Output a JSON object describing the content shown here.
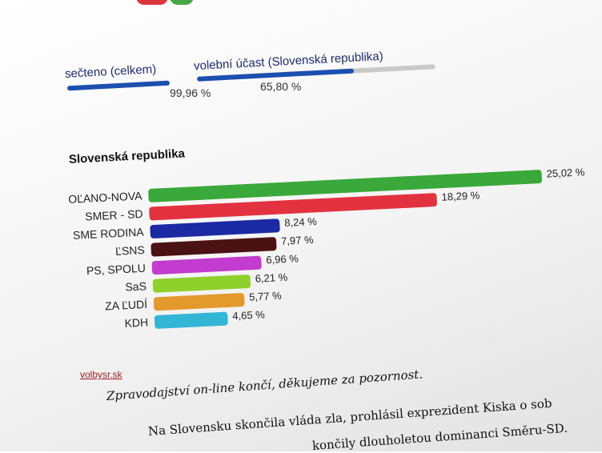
{
  "stats": [
    {
      "label": "sečteno (celkem)",
      "value": "99,96 %",
      "fraction": 0.9996
    },
    {
      "label": "volební účast (Slovenská republika)",
      "value": "65,80 %",
      "fraction": 0.658
    }
  ],
  "chart_data": {
    "type": "bar",
    "orientation": "horizontal",
    "title": "Slovenská republika",
    "categories": [
      "OĽANO-NOVA",
      "SMER - SD",
      "SME RODINA",
      "ĽSNS",
      "PS, SPOLU",
      "SaS",
      "ZA ĽUDÍ",
      "KDH"
    ],
    "values": [
      25.02,
      18.29,
      8.24,
      7.97,
      6.96,
      6.21,
      5.77,
      4.65
    ],
    "value_labels": [
      "25,02 %",
      "18,29 %",
      "8,24 %",
      "7,97 %",
      "6,96 %",
      "6,21 %",
      "5,77 %",
      "4,65 %"
    ],
    "colors": [
      "#3aa83a",
      "#e3323f",
      "#1b2aa3",
      "#4a1212",
      "#c23ccf",
      "#8fd02c",
      "#e39a2c",
      "#33b6d6"
    ],
    "xlim": [
      0,
      25.02
    ],
    "grid": false
  },
  "source": "volbysr.sk",
  "article": [
    "Zpravodajství on-line končí, děkujeme za pozornost.",
    "Na Slovensku skončila vláda zla, prohlásil exprezident Kiska o sob",
    "končily dlouholetou dominanci Směru-SD."
  ]
}
